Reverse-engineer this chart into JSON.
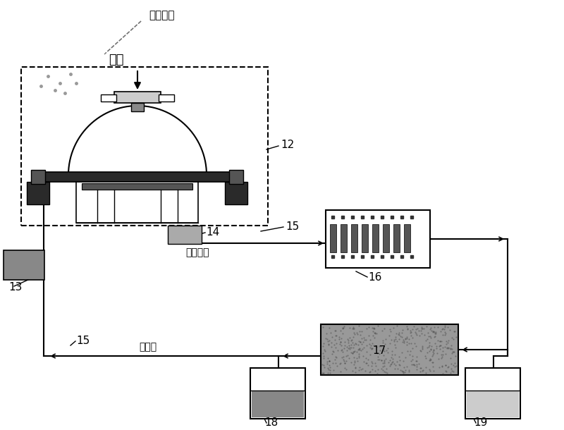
{
  "bg_color": "#ffffff",
  "labels": {
    "charged_particles": "带电颗粒",
    "air": "空气",
    "sample_transport": "样品输送",
    "collection_liquid": "采集液",
    "num_12": "12",
    "num_13": "13",
    "num_14": "14",
    "num_15_top": "15",
    "num_15_bot": "15",
    "num_16": "16",
    "num_17": "17",
    "num_18": "18",
    "num_19": "19"
  }
}
